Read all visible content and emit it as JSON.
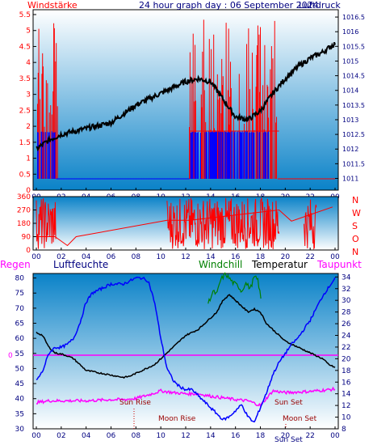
{
  "header": {
    "left_title": "Windstärke",
    "center_title": "24 hour graph day : 06 September 2024",
    "right_title": "Luftdruck"
  },
  "colors": {
    "bg": "#ffffff",
    "plot_top": "#ffffff",
    "plot_bottom": "#0a82c8",
    "red": "#ff0000",
    "blue": "#0000ff",
    "black": "#000000",
    "green": "#008000",
    "magenta": "#ff00ff",
    "navy": "#000080",
    "label_blue": "#000080"
  },
  "chart_data": [
    {
      "type": "line",
      "name": "wind-pressure",
      "x_ticks": [
        "00",
        "02",
        "04",
        "06",
        "08",
        "10",
        "12",
        "14",
        "16",
        "18",
        "20",
        "22",
        "00"
      ],
      "left_axis": {
        "label": "Windstärke",
        "ticks": [
          "0",
          "0.5",
          "1",
          "1.5",
          "2",
          "2.5",
          "3",
          "3.5",
          "4",
          "4.5",
          "5",
          "5.5"
        ],
        "ylim": [
          0,
          5.5
        ]
      },
      "right_axis": {
        "label": "Luftdruck",
        "ticks": [
          "1011",
          "1011.5",
          "1012",
          "1012.5",
          "1013",
          "1013.5",
          "1014",
          "1014.5",
          "1015",
          "1015.5",
          "1016",
          "1016.5"
        ],
        "ylim": [
          1010.6,
          1016.75
        ]
      },
      "pressure": {
        "x": [
          0,
          1,
          2,
          3,
          4,
          5,
          6,
          7,
          8,
          9,
          10,
          11,
          12,
          13,
          14,
          15,
          16,
          17,
          18,
          19,
          20,
          21,
          22,
          23,
          24
        ],
        "y": [
          1012.0,
          1012.3,
          1012.5,
          1012.6,
          1012.7,
          1012.8,
          1012.9,
          1013.2,
          1013.5,
          1013.7,
          1013.9,
          1014.1,
          1014.3,
          1014.4,
          1014.3,
          1013.7,
          1013.1,
          1013.0,
          1013.3,
          1013.9,
          1014.4,
          1014.8,
          1015.1,
          1015.3,
          1015.6
        ]
      },
      "wind_red_active_hours": [
        [
          0,
          1.8
        ],
        [
          12.3,
          19.4
        ]
      ],
      "wind_blue_active_hours": [
        [
          0,
          1.6
        ],
        [
          12.3,
          18.7
        ]
      ]
    },
    {
      "type": "scatter",
      "name": "wind-direction",
      "x_ticks": [
        "00",
        "02",
        "04",
        "06",
        "08",
        "10",
        "12",
        "14",
        "16",
        "18",
        "20",
        "22",
        "00"
      ],
      "left_ticks": [
        "0",
        "90",
        "180",
        "270",
        "360"
      ],
      "right_labels": [
        "N",
        "W",
        "S",
        "O",
        "N"
      ],
      "ylim": [
        0,
        360
      ],
      "baseline": {
        "x": [
          0,
          1.5,
          2.5,
          3.2,
          10.5,
          12.3,
          19.5,
          20.5,
          23.8
        ],
        "y": [
          90,
          90,
          30,
          90,
          200,
          200,
          270,
          195,
          290
        ]
      }
    },
    {
      "type": "line",
      "name": "humidity-temperature",
      "x_ticks": [
        "00",
        "02",
        "04",
        "06",
        "08",
        "10",
        "12",
        "14",
        "16",
        "18",
        "20",
        "22",
        "00"
      ],
      "labels": {
        "regen": "Regen",
        "feuchte": "Luftfeuchte",
        "windchill": "Windchill",
        "temperatur": "Temperatur",
        "taupunkt": "Taupunkt"
      },
      "humidity_axis": {
        "ticks": [
          "30",
          "35",
          "40",
          "45",
          "50",
          "55",
          "60",
          "65",
          "70",
          "75",
          "80"
        ],
        "ylim": [
          30,
          81.5
        ]
      },
      "temperature_axis": {
        "ticks": [
          "8",
          "10",
          "12",
          "14",
          "16",
          "18",
          "20",
          "22",
          "24",
          "26",
          "28",
          "30",
          "32",
          "34"
        ],
        "ylim": [
          8,
          34.6
        ]
      },
      "rain_axis": {
        "ticks": [
          "0"
        ]
      },
      "humidity": {
        "x": [
          0,
          0.5,
          1,
          1.5,
          2,
          2.5,
          3,
          3.5,
          4,
          4.5,
          5,
          5.5,
          6,
          6.5,
          7,
          7.5,
          8,
          8.5,
          9,
          9.5,
          10,
          10.5,
          11,
          11.5,
          12,
          12.5,
          13,
          13.5,
          14,
          14.5,
          15,
          15.5,
          16,
          16.5,
          17,
          17.5,
          18,
          18.5,
          19,
          19.5,
          20,
          20.5,
          21,
          21.5,
          22,
          22.5,
          23,
          23.5,
          24
        ],
        "y": [
          46,
          49,
          55,
          57,
          57,
          58,
          60,
          65,
          72,
          75,
          76,
          77,
          78,
          78,
          78,
          79,
          80,
          80,
          79,
          72,
          60,
          50,
          46,
          44,
          43,
          43,
          41,
          39,
          37,
          35,
          33,
          34,
          36,
          38,
          34,
          32,
          37,
          42,
          48,
          52,
          55,
          58,
          60,
          63,
          66,
          70,
          74,
          77,
          80
        ]
      },
      "temperature": {
        "x": [
          0,
          0.5,
          1,
          1.5,
          2,
          2.5,
          3,
          3.5,
          4,
          4.5,
          5,
          5.5,
          6,
          6.5,
          7,
          7.5,
          8,
          8.5,
          9,
          9.5,
          10,
          10.5,
          11,
          11.5,
          12,
          12.5,
          13,
          13.5,
          14,
          14.5,
          15,
          15.5,
          16,
          16.5,
          17,
          17.5,
          18,
          18.5,
          19,
          19.5,
          20,
          20.5,
          21,
          21.5,
          22,
          22.5,
          23,
          23.5,
          24
        ],
        "y": [
          24.5,
          24,
          22,
          21,
          20.8,
          20.5,
          20,
          19,
          18,
          17.8,
          17.6,
          17.4,
          17.2,
          17,
          16.8,
          17,
          17.5,
          18,
          18.5,
          19,
          20,
          21,
          22,
          23,
          24,
          24.5,
          25,
          26,
          27,
          28,
          30,
          31,
          30,
          29,
          28,
          28.5,
          28,
          26,
          25,
          24,
          23,
          22.5,
          22,
          21.5,
          21,
          20.5,
          20,
          19,
          18.5
        ]
      },
      "windchill": {
        "x": [
          13.8,
          14.2,
          14.5,
          14.8,
          15.2,
          15.5,
          15.8,
          16.2,
          16.5,
          16.8,
          17.2,
          17.5,
          17.8,
          18.1
        ],
        "y": [
          29.5,
          31.5,
          31,
          33.5,
          34.5,
          33.8,
          33,
          32.5,
          31.5,
          33,
          32,
          34,
          33.5,
          29.5
        ]
      },
      "dewpoint": {
        "x": [
          0,
          1,
          2,
          3,
          4,
          5,
          6,
          7,
          8,
          9,
          10,
          11,
          12,
          13,
          14,
          15,
          16,
          17,
          18,
          19,
          20,
          21,
          22,
          23,
          24
        ],
        "y": [
          12.5,
          12.8,
          12.8,
          12.8,
          12.8,
          12.9,
          13,
          13,
          13.2,
          13.8,
          14.5,
          14.2,
          14,
          14,
          13.6,
          13.3,
          13,
          12.8,
          12,
          14.5,
          14.2,
          14.3,
          14.4,
          14.6,
          14.8
        ]
      },
      "rain": {
        "x": [
          0,
          24
        ],
        "y": [
          0,
          0
        ]
      },
      "annotations": {
        "sun_rise": "Sun Rise",
        "moon_rise": "Moon Rise",
        "sun_set": "Sun Set",
        "moon_set": "Moon Set",
        "sun_set_bottom": "Sun Set"
      }
    }
  ]
}
